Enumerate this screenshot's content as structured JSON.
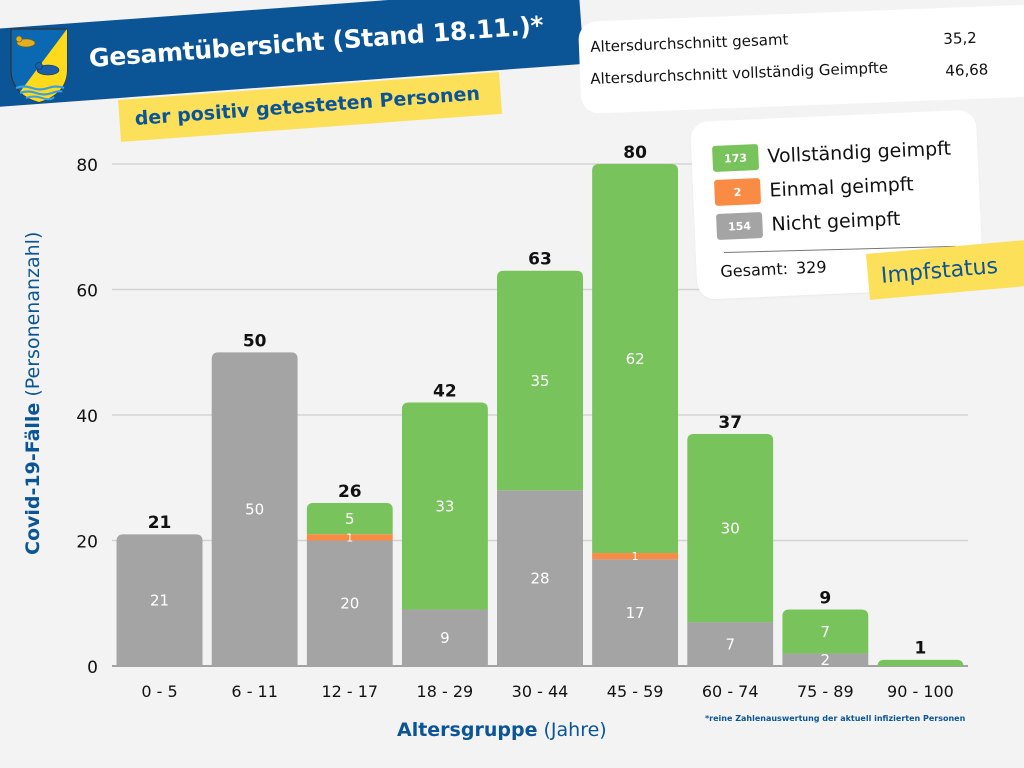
{
  "header": {
    "title": "Gesamtübersicht (Stand 18.11.)*",
    "subtitle": "der positiv getesteten Personen",
    "crest_icon": "coat-of-arms-icon"
  },
  "stats": {
    "rows": [
      {
        "label": "Altersdurchschnitt gesamt",
        "value": "35,2"
      },
      {
        "label": "Altersdurchschnitt vollständig Geimpfte",
        "value": "46,68"
      }
    ]
  },
  "legend": {
    "items": [
      {
        "count": "173",
        "label": "Vollständig geimpft",
        "color": "#79c35c"
      },
      {
        "count": "2",
        "label": "Einmal geimpft",
        "color": "#f98b45"
      },
      {
        "count": "154",
        "label": "Nicht geimpft",
        "color": "#a4a4a4"
      }
    ],
    "total_label": "Gesamt:",
    "total_value": "329",
    "tag": "Impfstatus"
  },
  "axes": {
    "ylabel_bold": "Covid-19-Fälle",
    "ylabel_rest": " (Personenanzahl)",
    "xlabel_bold": "Altersgruppe",
    "xlabel_rest": " (Jahre)"
  },
  "footnote": "*reine Zahlenauswertung der aktuell infizierten Personen",
  "chart_data": {
    "type": "bar",
    "stacked": true,
    "title": "Gesamtübersicht (Stand 18.11.)* der positiv getesteten Personen",
    "xlabel": "Altersgruppe (Jahre)",
    "ylabel": "Covid-19-Fälle (Personenanzahl)",
    "ylim": [
      0,
      80
    ],
    "yticks": [
      0,
      20,
      40,
      60,
      80
    ],
    "grid": true,
    "legend_position": "top-right",
    "categories": [
      "0 - 5",
      "6 - 11",
      "12 - 17",
      "18 - 29",
      "30 - 44",
      "45 - 59",
      "60 - 74",
      "75 - 89",
      "90 - 100"
    ],
    "series": [
      {
        "name": "Nicht geimpft",
        "color": "#a4a4a4",
        "values": [
          21,
          50,
          20,
          9,
          28,
          17,
          7,
          2,
          0
        ]
      },
      {
        "name": "Einmal geimpft",
        "color": "#f98b45",
        "values": [
          0,
          0,
          1,
          0,
          0,
          1,
          0,
          0,
          0
        ]
      },
      {
        "name": "Vollständig geimpft",
        "color": "#79c35c",
        "values": [
          0,
          0,
          5,
          33,
          35,
          62,
          30,
          7,
          1
        ]
      }
    ],
    "totals": [
      21,
      50,
      26,
      42,
      63,
      80,
      37,
      9,
      1
    ]
  }
}
